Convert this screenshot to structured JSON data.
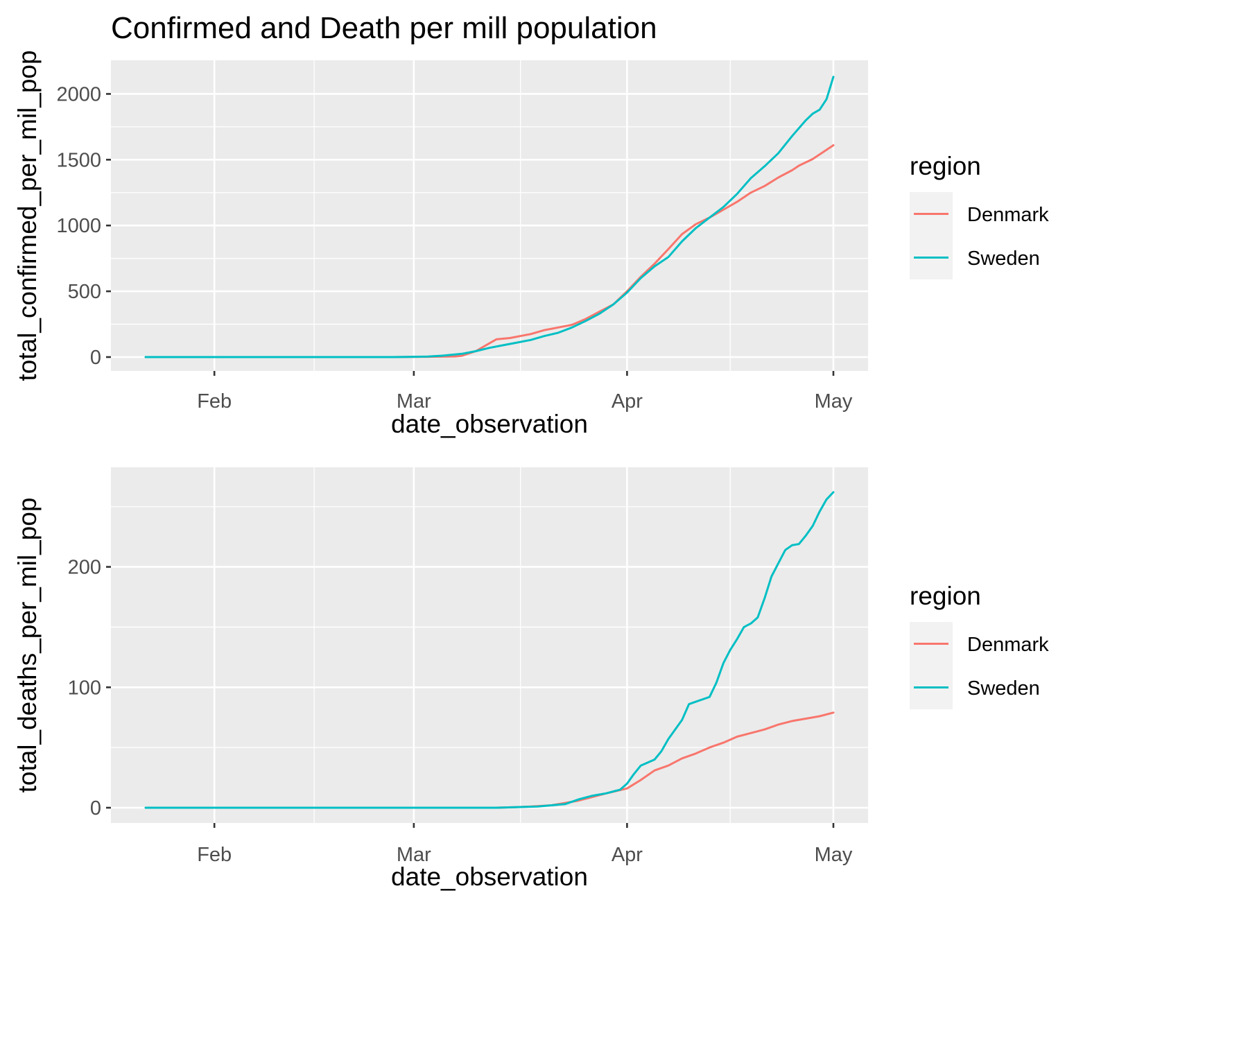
{
  "title": "Confirmed and Death per mill population",
  "colors": {
    "Denmark": "#F8766D",
    "Sweden": "#00BFC4"
  },
  "chart_data": [
    {
      "type": "line",
      "title": "Confirmed and Death per mill population",
      "xlabel": "date_observation",
      "ylabel": "total_confirmed_per_mil_pop",
      "xlim": [
        "2020-01-22",
        "2020-05-01"
      ],
      "ylim": [
        0,
        2150
      ],
      "x_ticks": [
        {
          "value": "2020-02-01",
          "label": "Feb"
        },
        {
          "value": "2020-03-01",
          "label": "Mar"
        },
        {
          "value": "2020-04-01",
          "label": "Apr"
        },
        {
          "value": "2020-05-01",
          "label": "May"
        }
      ],
      "y_ticks": [
        0,
        500,
        1000,
        1500,
        2000
      ],
      "grid": true,
      "legend": {
        "title": "region",
        "position": "right"
      },
      "series": [
        {
          "name": "Denmark",
          "color": "#F8766D",
          "points": [
            [
              "2020-01-22",
              0
            ],
            [
              "2020-02-27",
              0
            ],
            [
              "2020-03-01",
              1
            ],
            [
              "2020-03-03",
              2
            ],
            [
              "2020-03-05",
              3
            ],
            [
              "2020-03-07",
              5
            ],
            [
              "2020-03-08",
              10
            ],
            [
              "2020-03-10",
              45
            ],
            [
              "2020-03-12",
              105
            ],
            [
              "2020-03-13",
              135
            ],
            [
              "2020-03-15",
              145
            ],
            [
              "2020-03-18",
              175
            ],
            [
              "2020-03-20",
              205
            ],
            [
              "2020-03-22",
              225
            ],
            [
              "2020-03-24",
              245
            ],
            [
              "2020-03-26",
              290
            ],
            [
              "2020-03-28",
              345
            ],
            [
              "2020-03-30",
              400
            ],
            [
              "2020-04-01",
              500
            ],
            [
              "2020-04-03",
              610
            ],
            [
              "2020-04-05",
              710
            ],
            [
              "2020-04-07",
              820
            ],
            [
              "2020-04-09",
              935
            ],
            [
              "2020-04-11",
              1010
            ],
            [
              "2020-04-13",
              1060
            ],
            [
              "2020-04-15",
              1120
            ],
            [
              "2020-04-17",
              1180
            ],
            [
              "2020-04-19",
              1250
            ],
            [
              "2020-04-21",
              1300
            ],
            [
              "2020-04-23",
              1365
            ],
            [
              "2020-04-25",
              1420
            ],
            [
              "2020-04-26",
              1455
            ],
            [
              "2020-04-28",
              1505
            ],
            [
              "2020-05-01",
              1610
            ]
          ]
        },
        {
          "name": "Sweden",
          "color": "#00BFC4",
          "points": [
            [
              "2020-01-22",
              0
            ],
            [
              "2020-02-27",
              0
            ],
            [
              "2020-03-01",
              2
            ],
            [
              "2020-03-03",
              4
            ],
            [
              "2020-03-05",
              10
            ],
            [
              "2020-03-07",
              20
            ],
            [
              "2020-03-08",
              25
            ],
            [
              "2020-03-10",
              45
            ],
            [
              "2020-03-12",
              70
            ],
            [
              "2020-03-14",
              90
            ],
            [
              "2020-03-16",
              110
            ],
            [
              "2020-03-18",
              130
            ],
            [
              "2020-03-20",
              160
            ],
            [
              "2020-03-22",
              185
            ],
            [
              "2020-03-24",
              225
            ],
            [
              "2020-03-26",
              275
            ],
            [
              "2020-03-28",
              330
            ],
            [
              "2020-03-30",
              400
            ],
            [
              "2020-04-01",
              490
            ],
            [
              "2020-04-03",
              600
            ],
            [
              "2020-04-05",
              690
            ],
            [
              "2020-04-07",
              760
            ],
            [
              "2020-04-09",
              880
            ],
            [
              "2020-04-11",
              980
            ],
            [
              "2020-04-13",
              1060
            ],
            [
              "2020-04-15",
              1140
            ],
            [
              "2020-04-17",
              1240
            ],
            [
              "2020-04-19",
              1360
            ],
            [
              "2020-04-21",
              1450
            ],
            [
              "2020-04-23",
              1550
            ],
            [
              "2020-04-25",
              1680
            ],
            [
              "2020-04-27",
              1800
            ],
            [
              "2020-04-28",
              1850
            ],
            [
              "2020-04-29",
              1880
            ],
            [
              "2020-04-30",
              1960
            ],
            [
              "2020-05-01",
              2130
            ]
          ]
        }
      ]
    },
    {
      "type": "line",
      "xlabel": "date_observation",
      "ylabel": "total_deaths_per_mil_pop",
      "xlim": [
        "2020-01-22",
        "2020-05-01"
      ],
      "ylim": [
        0,
        270
      ],
      "x_ticks": [
        {
          "value": "2020-02-01",
          "label": "Feb"
        },
        {
          "value": "2020-03-01",
          "label": "Mar"
        },
        {
          "value": "2020-04-01",
          "label": "Apr"
        },
        {
          "value": "2020-05-01",
          "label": "May"
        }
      ],
      "y_ticks": [
        0,
        100,
        200
      ],
      "grid": true,
      "legend": {
        "title": "region",
        "position": "right"
      },
      "series": [
        {
          "name": "Denmark",
          "color": "#F8766D",
          "points": [
            [
              "2020-01-22",
              0
            ],
            [
              "2020-03-13",
              0
            ],
            [
              "2020-03-16",
              0.5
            ],
            [
              "2020-03-18",
              1
            ],
            [
              "2020-03-21",
              2
            ],
            [
              "2020-03-23",
              4
            ],
            [
              "2020-03-25",
              6
            ],
            [
              "2020-03-27",
              9
            ],
            [
              "2020-03-29",
              12
            ],
            [
              "2020-04-01",
              16
            ],
            [
              "2020-04-03",
              23
            ],
            [
              "2020-04-05",
              31
            ],
            [
              "2020-04-07",
              35
            ],
            [
              "2020-04-09",
              41
            ],
            [
              "2020-04-11",
              45
            ],
            [
              "2020-04-13",
              50
            ],
            [
              "2020-04-15",
              54
            ],
            [
              "2020-04-17",
              59
            ],
            [
              "2020-04-19",
              62
            ],
            [
              "2020-04-21",
              65
            ],
            [
              "2020-04-23",
              69
            ],
            [
              "2020-04-25",
              72
            ],
            [
              "2020-04-27",
              74
            ],
            [
              "2020-04-29",
              76
            ],
            [
              "2020-05-01",
              79
            ]
          ]
        },
        {
          "name": "Sweden",
          "color": "#00BFC4",
          "points": [
            [
              "2020-01-22",
              0
            ],
            [
              "2020-03-13",
              0
            ],
            [
              "2020-03-16",
              0.5
            ],
            [
              "2020-03-19",
              1
            ],
            [
              "2020-03-21",
              2
            ],
            [
              "2020-03-23",
              3
            ],
            [
              "2020-03-25",
              7
            ],
            [
              "2020-03-27",
              10
            ],
            [
              "2020-03-29",
              12
            ],
            [
              "2020-03-31",
              15
            ],
            [
              "2020-04-01",
              20
            ],
            [
              "2020-04-02",
              28
            ],
            [
              "2020-04-03",
              35
            ],
            [
              "2020-04-05",
              40
            ],
            [
              "2020-04-06",
              47
            ],
            [
              "2020-04-07",
              57
            ],
            [
              "2020-04-09",
              73
            ],
            [
              "2020-04-10",
              86
            ],
            [
              "2020-04-11",
              88
            ],
            [
              "2020-04-13",
              92
            ],
            [
              "2020-04-14",
              104
            ],
            [
              "2020-04-15",
              120
            ],
            [
              "2020-04-16",
              131
            ],
            [
              "2020-04-17",
              140
            ],
            [
              "2020-04-18",
              150
            ],
            [
              "2020-04-19",
              153
            ],
            [
              "2020-04-20",
              158
            ],
            [
              "2020-04-21",
              174
            ],
            [
              "2020-04-22",
              192
            ],
            [
              "2020-04-23",
              203
            ],
            [
              "2020-04-24",
              214
            ],
            [
              "2020-04-25",
              218
            ],
            [
              "2020-04-26",
              219
            ],
            [
              "2020-04-27",
              226
            ],
            [
              "2020-04-28",
              234
            ],
            [
              "2020-04-29",
              246
            ],
            [
              "2020-04-30",
              256
            ],
            [
              "2020-05-01",
              262
            ]
          ]
        }
      ]
    }
  ]
}
